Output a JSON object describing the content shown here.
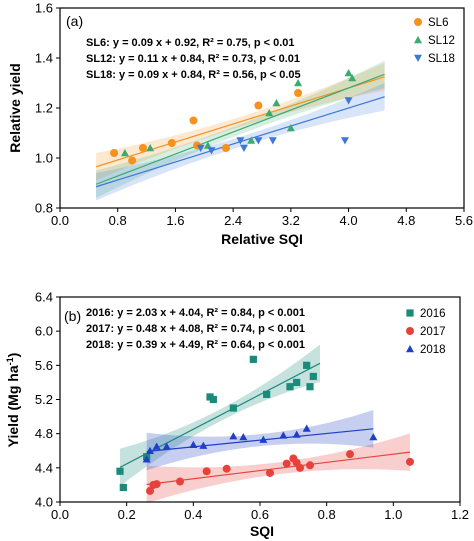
{
  "chart_data": [
    {
      "type": "scatter",
      "panel_label": "(a)",
      "xlabel": "Relative SQI",
      "ylabel": "Relative yield",
      "xlim": [
        0.0,
        5.6
      ],
      "ylim": [
        0.8,
        1.6
      ],
      "x_ticks": [
        "0.0",
        "0.8",
        "1.6",
        "2.4",
        "3.2",
        "4.0",
        "4.8",
        "5.6"
      ],
      "x_tick_values": [
        0.0,
        0.8,
        1.6,
        2.4,
        3.2,
        4.0,
        4.8,
        5.6
      ],
      "y_ticks": [
        "0.8",
        "1.0",
        "1.2",
        "1.4",
        "1.6"
      ],
      "y_tick_values": [
        0.8,
        1.0,
        1.2,
        1.4,
        1.6
      ],
      "grid": false,
      "legend_position": "top-right",
      "equations": [
        "SL6: y = 0.09 x + 0.92,  R² = 0.75, p < 0.01",
        "SL12: y = 0.11 x + 0.84,  R² = 0.73, p < 0.01",
        "SL18: y = 0.09 x + 0.84,  R² = 0.56, p < 0.05"
      ],
      "series": [
        {
          "name": "SL6",
          "marker": "circle",
          "color": "#F5921E",
          "fit": {
            "slope": 0.09,
            "intercept": 0.92,
            "x_range": [
              0.5,
              4.5
            ]
          },
          "points": [
            [
              0.75,
              1.02
            ],
            [
              1.0,
              0.99
            ],
            [
              1.15,
              1.04
            ],
            [
              1.55,
              1.06
            ],
            [
              1.85,
              1.15
            ],
            [
              1.9,
              1.05
            ],
            [
              2.3,
              1.04
            ],
            [
              2.75,
              1.21
            ],
            [
              3.3,
              1.26
            ]
          ]
        },
        {
          "name": "SL12",
          "marker": "triangle-up",
          "color": "#3BAA6E",
          "fit": {
            "slope": 0.11,
            "intercept": 0.84,
            "x_range": [
              0.5,
              4.5
            ]
          },
          "points": [
            [
              0.9,
              1.02
            ],
            [
              1.25,
              1.04
            ],
            [
              2.05,
              1.05
            ],
            [
              2.65,
              1.07
            ],
            [
              2.9,
              1.18
            ],
            [
              3.0,
              1.22
            ],
            [
              3.2,
              1.12
            ],
            [
              3.3,
              1.3
            ],
            [
              4.0,
              1.34
            ],
            [
              4.05,
              1.32
            ]
          ]
        },
        {
          "name": "SL18",
          "marker": "triangle-down",
          "color": "#3C78D8",
          "fit": {
            "slope": 0.09,
            "intercept": 0.84,
            "x_range": [
              0.5,
              4.5
            ]
          },
          "points": [
            [
              1.95,
              1.04
            ],
            [
              2.1,
              1.03
            ],
            [
              2.5,
              1.07
            ],
            [
              2.55,
              1.04
            ],
            [
              2.75,
              1.07
            ],
            [
              2.95,
              1.07
            ],
            [
              3.95,
              1.07
            ],
            [
              4.0,
              1.23
            ]
          ]
        }
      ]
    },
    {
      "type": "scatter",
      "panel_label": "(b)",
      "xlabel": "SQI",
      "ylabel": "Yield (Mg ha",
      "ylabel_sup": "-1",
      "ylabel_end": ")",
      "xlim": [
        0.0,
        1.2
      ],
      "ylim": [
        4.0,
        6.4
      ],
      "x_ticks": [
        "0.0",
        "0.2",
        "0.4",
        "0.6",
        "0.8",
        "1.0",
        "1.2"
      ],
      "x_tick_values": [
        0.0,
        0.2,
        0.4,
        0.6,
        0.8,
        1.0,
        1.2
      ],
      "y_ticks": [
        "4.0",
        "4.4",
        "4.8",
        "5.2",
        "5.6",
        "6.0",
        "6.4"
      ],
      "y_tick_values": [
        4.0,
        4.4,
        4.8,
        5.2,
        5.6,
        6.0,
        6.4
      ],
      "grid": false,
      "legend_position": "top-right",
      "equations": [
        "2016: y = 2.03 x + 4.04,  R² = 0.84, p < 0.001",
        "2017: y = 0.48 x + 4.08,  R² = 0.74, p < 0.001",
        "2018: y = 0.39 x + 4.49,  R² = 0.64, p < 0.001"
      ],
      "series": [
        {
          "name": "2016",
          "marker": "square",
          "color": "#1A8A7A",
          "fit": {
            "slope": 2.03,
            "intercept": 4.04,
            "x_range": [
              0.18,
              0.78
            ]
          },
          "points": [
            [
              0.18,
              4.36
            ],
            [
              0.19,
              4.17
            ],
            [
              0.26,
              4.53
            ],
            [
              0.45,
              5.23
            ],
            [
              0.46,
              5.2
            ],
            [
              0.52,
              5.1
            ],
            [
              0.58,
              5.67
            ],
            [
              0.62,
              5.26
            ],
            [
              0.69,
              5.35
            ],
            [
              0.71,
              5.4
            ],
            [
              0.74,
              5.6
            ],
            [
              0.75,
              5.35
            ],
            [
              0.76,
              5.47
            ]
          ]
        },
        {
          "name": "2017",
          "marker": "circle",
          "color": "#E8413C",
          "fit": {
            "slope": 0.48,
            "intercept": 4.08,
            "x_range": [
              0.26,
              1.05
            ]
          },
          "points": [
            [
              0.27,
              4.13
            ],
            [
              0.28,
              4.2
            ],
            [
              0.29,
              4.21
            ],
            [
              0.36,
              4.24
            ],
            [
              0.44,
              4.36
            ],
            [
              0.5,
              4.39
            ],
            [
              0.63,
              4.34
            ],
            [
              0.68,
              4.45
            ],
            [
              0.7,
              4.51
            ],
            [
              0.71,
              4.46
            ],
            [
              0.72,
              4.4
            ],
            [
              0.75,
              4.43
            ],
            [
              0.87,
              4.56
            ],
            [
              1.05,
              4.47
            ]
          ]
        },
        {
          "name": "2018",
          "marker": "triangle-up",
          "color": "#1F3FC8",
          "fit": {
            "slope": 0.39,
            "intercept": 4.49,
            "x_range": [
              0.26,
              0.94
            ]
          },
          "points": [
            [
              0.26,
              4.5
            ],
            [
              0.27,
              4.6
            ],
            [
              0.29,
              4.65
            ],
            [
              0.32,
              4.65
            ],
            [
              0.4,
              4.67
            ],
            [
              0.43,
              4.66
            ],
            [
              0.52,
              4.77
            ],
            [
              0.55,
              4.76
            ],
            [
              0.61,
              4.73
            ],
            [
              0.67,
              4.78
            ],
            [
              0.71,
              4.79
            ],
            [
              0.74,
              4.86
            ],
            [
              0.94,
              4.76
            ]
          ]
        }
      ]
    }
  ]
}
